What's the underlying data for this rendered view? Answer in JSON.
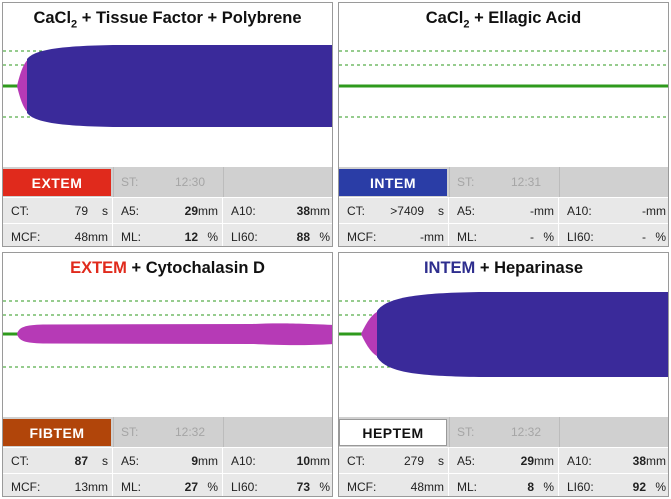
{
  "colors": {
    "extem_badge": "#e02a1c",
    "intem_badge": "#2a3da6",
    "fibtem_badge": "#b1450a",
    "heptem_badge": "#ffffff",
    "trace_blue": "#3a2a9a",
    "trace_pink": "#b63ab6",
    "baseline_green": "#2e9a1c"
  },
  "panels": [
    {
      "title_parts": [
        "CaCl",
        "2",
        " + Tissue Factor + Polybrene"
      ],
      "badge": "EXTEM",
      "st_label": "ST:",
      "st_time": "12:30",
      "trace": {
        "type": "clot",
        "color": "trace_blue",
        "ct_s": 79,
        "mcf_mm": 48
      },
      "row1": [
        {
          "label": "CT:",
          "value": "79",
          "unit": "s"
        },
        {
          "label": "A5:",
          "value": "29",
          "unit": "mm"
        },
        {
          "label": "A10:",
          "value": "38",
          "unit": "mm"
        }
      ],
      "row2": [
        {
          "label": "MCF:",
          "value": "48",
          "unit": "mm"
        },
        {
          "label": "ML:",
          "value": "12",
          "unit": "%"
        },
        {
          "label": "LI60:",
          "value": "88",
          "unit": "%"
        }
      ]
    },
    {
      "title_parts": [
        "CaCl",
        "2",
        " + Ellagic Acid"
      ],
      "badge": "INTEM",
      "st_label": "ST:",
      "st_time": "12:31",
      "trace": {
        "type": "flat",
        "color": "baseline_green"
      },
      "row1": [
        {
          "label": "CT:",
          "value": ">7409",
          "unit": "s"
        },
        {
          "label": "A5:",
          "value": "-",
          "unit": "mm"
        },
        {
          "label": "A10:",
          "value": "-",
          "unit": "mm"
        }
      ],
      "row2": [
        {
          "label": "MCF:",
          "value": "-",
          "unit": "mm"
        },
        {
          "label": "ML:",
          "value": "-",
          "unit": "%"
        },
        {
          "label": "LI60:",
          "value": "-",
          "unit": "%"
        }
      ]
    },
    {
      "title_parts": [
        "EXTEM",
        " + Cytochalasin D"
      ],
      "badge": "FIBTEM",
      "st_label": "ST:",
      "st_time": "12:32",
      "trace": {
        "type": "clot",
        "color": "trace_pink",
        "ct_s": 87,
        "mcf_mm": 13
      },
      "row1": [
        {
          "label": "CT:",
          "value": "87",
          "unit": "s"
        },
        {
          "label": "A5:",
          "value": "9",
          "unit": "mm"
        },
        {
          "label": "A10:",
          "value": "10",
          "unit": "mm"
        }
      ],
      "row2": [
        {
          "label": "MCF:",
          "value": "13",
          "unit": "mm"
        },
        {
          "label": "ML:",
          "value": "27",
          "unit": "%"
        },
        {
          "label": "LI60:",
          "value": "73",
          "unit": "%"
        }
      ]
    },
    {
      "title_parts": [
        "INTEM",
        " + Heparinase"
      ],
      "badge": "HEPTEM",
      "st_label": "ST:",
      "st_time": "12:32",
      "trace": {
        "type": "clot",
        "color": "trace_blue",
        "ct_s": 279,
        "mcf_mm": 48
      },
      "row1": [
        {
          "label": "CT:",
          "value": "279",
          "unit": "s"
        },
        {
          "label": "A5:",
          "value": "29",
          "unit": "mm"
        },
        {
          "label": "A10:",
          "value": "38",
          "unit": "mm"
        }
      ],
      "row2": [
        {
          "label": "MCF:",
          "value": "48",
          "unit": "mm"
        },
        {
          "label": "ML:",
          "value": "8",
          "unit": "%"
        },
        {
          "label": "LI60:",
          "value": "92",
          "unit": "%"
        }
      ]
    }
  ]
}
